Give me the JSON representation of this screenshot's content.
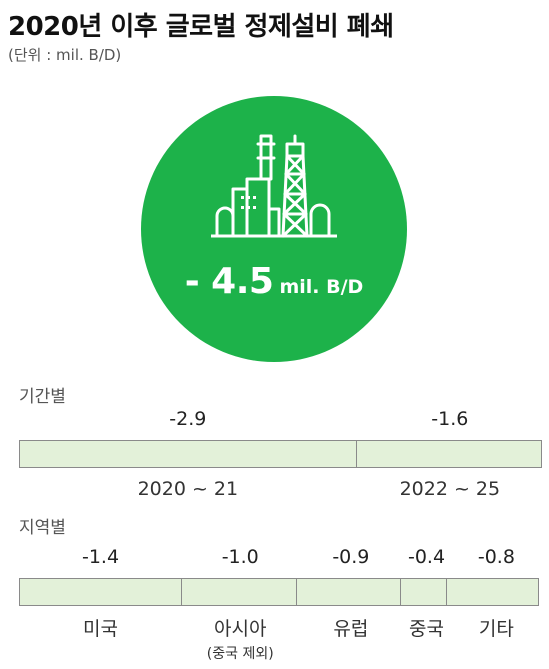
{
  "title": "2020년 이후 글로벌 정제설비 폐쇄",
  "subtitle": "(단위 : mil. B/D)",
  "total": {
    "value": "- 4.5",
    "unit": "mil. B/D"
  },
  "icon": "refinery-icon",
  "colors": {
    "circle": "#1db24a",
    "segment_fill": "#e3f1d9",
    "segment_border": "#8a8a8a"
  },
  "chart_data": [
    {
      "type": "bar",
      "title": "기간별",
      "categories": [
        "2020 ~ 21",
        "2022 ~ 25"
      ],
      "values": [
        -2.9,
        -1.6
      ],
      "value_labels": [
        "-2.9",
        "-1.6"
      ],
      "orientation": "horizontal-stacked",
      "total": -4.5
    },
    {
      "type": "bar",
      "title": "지역별",
      "categories": [
        "미국",
        "아시아",
        "유럽",
        "중국",
        "기타"
      ],
      "category_notes": [
        "",
        "(중국 제외)",
        "",
        "",
        ""
      ],
      "values": [
        -1.4,
        -1.0,
        -0.9,
        -0.4,
        -0.8
      ],
      "value_labels": [
        "-1.4",
        "-1.0",
        "-0.9",
        "-0.4",
        "-0.8"
      ],
      "orientation": "horizontal-stacked",
      "total": -4.5
    }
  ]
}
